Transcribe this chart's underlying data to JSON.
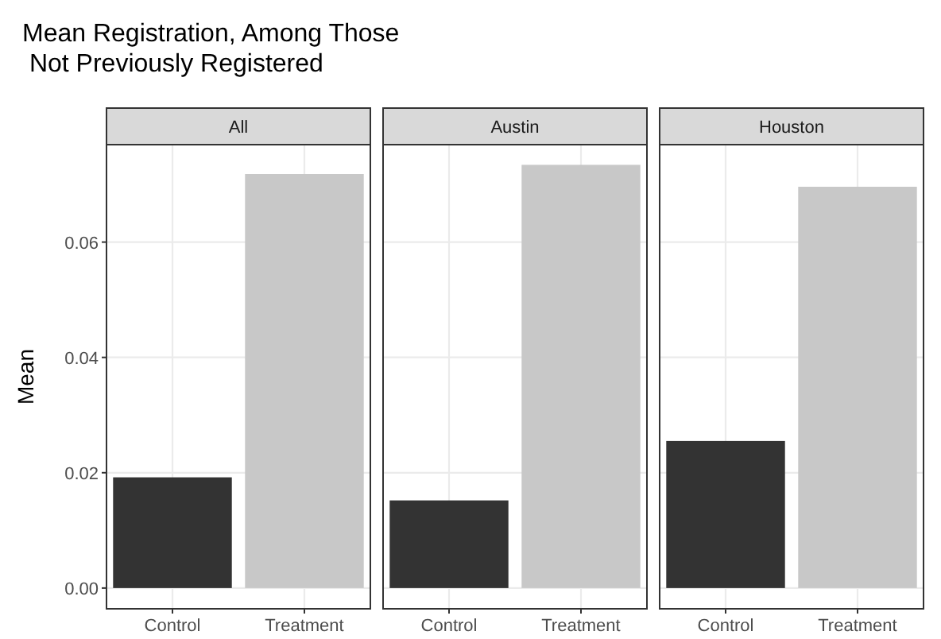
{
  "chart_data": [
    {
      "type": "bar",
      "title": "Mean Registration, Among Those\n Not Previously Registered",
      "subtitle": "All",
      "ylabel": "Mean",
      "categories": [
        "Control",
        "Treatment"
      ],
      "values": [
        0.0192,
        0.0718
      ],
      "colors": [
        "#333333",
        "#c8c8c8"
      ],
      "ylim": [
        -0.0036,
        0.0769
      ],
      "yticks": [
        {
          "value": 0,
          "label": "0.00"
        },
        {
          "value": 0.02,
          "label": "0.02"
        },
        {
          "value": 0.04,
          "label": "0.04"
        },
        {
          "value": 0.06,
          "label": "0.06"
        }
      ],
      "grid": true
    },
    {
      "type": "bar",
      "subtitle": "Austin",
      "categories": [
        "Control",
        "Treatment"
      ],
      "values": [
        0.0152,
        0.0734
      ],
      "colors": [
        "#333333",
        "#c8c8c8"
      ],
      "ylim": [
        -0.0036,
        0.0769
      ],
      "yticks": [
        0,
        0.02,
        0.04,
        0.06
      ],
      "grid": true,
      "tick_labels": "x"
    },
    {
      "type": "bar",
      "subtitle": "Houston",
      "categories": [
        "Control",
        "Treatment"
      ],
      "values": [
        0.0255,
        0.0696
      ],
      "colors": [
        "#333333",
        "#c8c8c8"
      ],
      "ylim": [
        -0.0036,
        0.0769
      ],
      "yticks": [
        0,
        0.02,
        0.04,
        0.06
      ],
      "grid": true,
      "tick_labels": "x"
    }
  ]
}
